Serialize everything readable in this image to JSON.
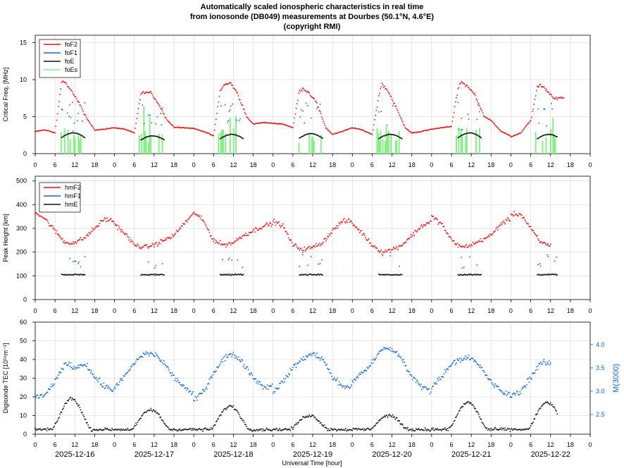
{
  "title": {
    "line1": "Automatically scaled ionospheric characteristics in real time",
    "line2": "from ionosonde (DB049) measurements at Dourbes (50.1°N, 4.6°E)",
    "line3": "(copyright RMI)"
  },
  "colors": {
    "foF2": "#ee1111",
    "foF1": "#1166dd",
    "foE": "#111111",
    "foEs": "#88ee88",
    "grid": "#d4d4d4",
    "mvalue_axis": "#1166dd"
  },
  "chart_data": [
    {
      "type": "scatter",
      "id": "critical_frequency",
      "ylabel": "Critical Freq. [MHz]",
      "ylim": [
        0,
        16
      ],
      "yticks": [
        0,
        5,
        10,
        15
      ],
      "x_tick_labels": [
        "0",
        "6",
        "12",
        "18",
        "0",
        "6",
        "12",
        "18",
        "0",
        "6",
        "12",
        "18",
        "0",
        "6",
        "12",
        "18",
        "0",
        "6",
        "12",
        "18",
        "0",
        "6",
        "12",
        "18",
        "0",
        "6",
        "12",
        "18",
        "0"
      ],
      "xlim_hours": [
        0,
        168
      ],
      "grid": true,
      "legend_position": "top-left",
      "series": [
        {
          "name": "foF2",
          "color": "#ee1111",
          "day_hours": [
            0,
            3,
            6,
            8,
            9,
            11,
            13,
            16,
            18,
            21,
            24
          ],
          "daily_values": [
            [
              3.0,
              3.2,
              2.8,
              9.8,
              9.7,
              8.5,
              7.0,
              4.5,
              3.2,
              3.3,
              3.5
            ],
            [
              3.5,
              3.3,
              2.8,
              8.0,
              8.3,
              8.2,
              7.0,
              4.5,
              3.6,
              3.5,
              3.4
            ],
            [
              3.4,
              3.0,
              2.4,
              8.5,
              9.2,
              9.6,
              8.3,
              5.0,
              4.0,
              4.2,
              4.1
            ],
            [
              4.1,
              4.0,
              3.5,
              8.6,
              8.8,
              8.2,
              7.0,
              3.5,
              2.6,
              3.0,
              3.5
            ],
            [
              3.5,
              3.2,
              2.6,
              7.8,
              9.5,
              8.3,
              6.5,
              3.5,
              2.8,
              3.0,
              3.3
            ],
            [
              3.3,
              3.5,
              3.7,
              8.7,
              9.7,
              9.0,
              8.0,
              5.0,
              4.5,
              3.0,
              2.4
            ],
            [
              2.3,
              2.8,
              4.5,
              9.0,
              9.2,
              8.5,
              7.5,
              7.5
            ]
          ]
        },
        {
          "name": "foF1",
          "color": "#1166dd",
          "note": "daytime points around 3-7 MHz"
        },
        {
          "name": "foE",
          "color": "#111111",
          "daily_peak": [
            2.8,
            2.4,
            2.6,
            2.7,
            2.6,
            2.8,
            2.6
          ]
        },
        {
          "name": "foEs",
          "color": "#88ee88",
          "note": "sporadic bars during daytime"
        }
      ]
    },
    {
      "type": "scatter",
      "id": "peak_height",
      "ylabel": "Peak Height [km]",
      "ylim": [
        0,
        520
      ],
      "yticks": [
        0,
        100,
        200,
        300,
        400,
        500
      ],
      "x_tick_labels": [
        "0",
        "6",
        "12",
        "18",
        "0",
        "6",
        "12",
        "18",
        "0",
        "6",
        "12",
        "18",
        "0",
        "6",
        "12",
        "18",
        "0",
        "6",
        "12",
        "18",
        "0",
        "6",
        "12",
        "18",
        "0",
        "6",
        "12",
        "18",
        "0"
      ],
      "grid": true,
      "legend_position": "top-left",
      "series": [
        {
          "name": "hmF2",
          "color": "#ee1111",
          "day_hours": [
            0,
            3,
            6,
            9,
            12,
            15,
            18,
            21,
            24
          ],
          "daily_values": [
            [
              370,
              340,
              290,
              240,
              240,
              260,
              300,
              340,
              330
            ],
            [
              320,
              280,
              230,
              220,
              230,
              250,
              270,
              320,
              360
            ],
            [
              370,
              330,
              250,
              230,
              240,
              270,
              290,
              310,
              320
            ],
            [
              330,
              310,
              230,
              210,
              220,
              240,
              290,
              330,
              330
            ],
            [
              320,
              280,
              230,
              200,
              210,
              230,
              270,
              310,
              330
            ],
            [
              350,
              320,
              250,
              220,
              230,
              250,
              270,
              320,
              340
            ],
            [
              360,
              360,
              300,
              240,
              230
            ]
          ]
        },
        {
          "name": "hmF1",
          "color": "#1166dd",
          "note": "daytime points around 120-200 km"
        },
        {
          "name": "hmE",
          "color": "#111111",
          "daily_value": 105
        }
      ]
    },
    {
      "type": "scatter",
      "id": "tec_m3000",
      "ylabel": "Digisonde TEC [10¹⁶m⁻²]",
      "y2label": "M(3000)",
      "ylim": [
        0,
        60
      ],
      "yticks": [
        0,
        10,
        20,
        30,
        40,
        50,
        60
      ],
      "y2lim": [
        2.08,
        4.48
      ],
      "y2ticks": [
        2.5,
        3.0,
        3.5,
        4.0
      ],
      "x_tick_labels": [
        "0",
        "6",
        "12",
        "18",
        "0",
        "6",
        "12",
        "18",
        "0",
        "6",
        "12",
        "18",
        "0",
        "6",
        "12",
        "18",
        "0",
        "6",
        "12",
        "18",
        "0",
        "6",
        "12",
        "18",
        "0",
        "6",
        "12",
        "18",
        "0"
      ],
      "xlabel": "Universal Time [hour]",
      "date_labels": [
        "2025-12-16",
        "2025-12-17",
        "2025-12-18",
        "2025-12-19",
        "2025-12-20",
        "2025-12-21",
        "2025-12-22"
      ],
      "grid": true,
      "series": [
        {
          "name": "TEC",
          "color": "#111111",
          "daily_peak": [
            19,
            13,
            15,
            10,
            10,
            17,
            17
          ],
          "night_value": 2.5
        },
        {
          "name": "M(3000)",
          "color": "#1166dd",
          "axis": "right",
          "day_hours": [
            0,
            3,
            6,
            9,
            12,
            15,
            18,
            21,
            24
          ],
          "daily_values": [
            [
              2.9,
              2.9,
              3.2,
              3.6,
              3.5,
              3.6,
              3.3,
              3.1,
              3.0
            ],
            [
              3.1,
              3.3,
              3.6,
              3.8,
              3.8,
              3.6,
              3.3,
              3.1,
              2.9
            ],
            [
              2.8,
              3.0,
              3.4,
              3.7,
              3.8,
              3.6,
              3.3,
              3.1,
              3.1
            ],
            [
              3.0,
              3.2,
              3.5,
              3.7,
              3.8,
              3.7,
              3.3,
              3.1,
              3.1
            ],
            [
              3.2,
              3.4,
              3.6,
              3.9,
              3.9,
              3.7,
              3.3,
              3.1,
              3.0
            ],
            [
              3.1,
              3.3,
              3.6,
              3.7,
              3.7,
              3.5,
              3.2,
              3.0,
              2.9
            ],
            [
              2.9,
              3.0,
              3.3,
              3.6,
              3.6
            ]
          ]
        }
      ]
    }
  ]
}
